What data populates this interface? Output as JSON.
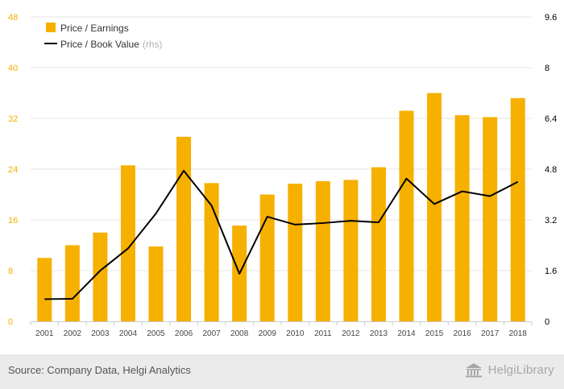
{
  "colors": {
    "bar": "#f6b000",
    "line": "#000000",
    "left_axis_text": "#f6b000",
    "right_axis_text": "#000000",
    "grid": "#e6e6e6",
    "footer_bg": "#ebebeb"
  },
  "chart_data": {
    "type": "bar",
    "categories": [
      "2001",
      "2002",
      "2003",
      "2004",
      "2005",
      "2006",
      "2007",
      "2008",
      "2009",
      "2010",
      "2011",
      "2012",
      "2013",
      "2014",
      "2015",
      "2016",
      "2017",
      "2018"
    ],
    "series": [
      {
        "name": "Price / Earnings",
        "type": "bar",
        "axis": "left",
        "values": [
          10.0,
          12.0,
          14.0,
          24.6,
          11.8,
          29.1,
          21.8,
          15.1,
          20.0,
          21.7,
          22.1,
          22.3,
          24.3,
          33.2,
          36.0,
          32.5,
          32.2,
          35.2
        ]
      },
      {
        "name": "Price / Book Value",
        "type": "line",
        "axis": "right",
        "values": [
          0.7,
          0.71,
          1.6,
          2.3,
          3.4,
          4.75,
          3.65,
          1.5,
          3.3,
          3.05,
          3.1,
          3.17,
          3.12,
          4.5,
          3.7,
          4.1,
          3.95,
          4.4
        ]
      }
    ],
    "legend": [
      "Price / Earnings",
      "Price / Book Value"
    ],
    "legend_suffix": "(rhs)",
    "left_ticks": [
      "0",
      "8",
      "16",
      "24",
      "32",
      "40",
      "48"
    ],
    "right_ticks": [
      "0",
      "1.6",
      "3.2",
      "4.8",
      "6.4",
      "8",
      "9.6"
    ],
    "ylim_left": [
      0,
      48
    ],
    "ylim_right": [
      0,
      9.6
    ],
    "legend_position": "top-left",
    "grid": true
  },
  "footer": {
    "source": "Source: Company Data, Helgi Analytics",
    "logo_text": "HelgiLibrary"
  }
}
